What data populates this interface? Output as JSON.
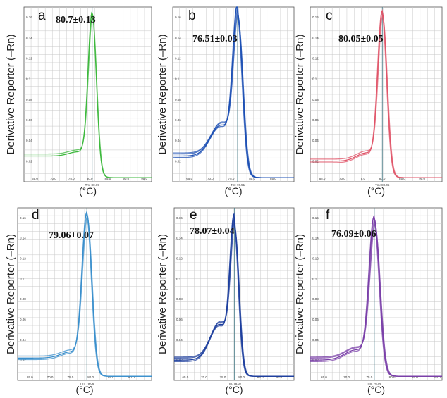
{
  "figure": {
    "y_axis_label": "Derivative Reporter (–Rn)",
    "x_axis_label": "(°C)"
  },
  "chart_data": [
    {
      "type": "line",
      "panel": "a",
      "annotation": "80.7±0.13",
      "color": "#3cb83c",
      "n_traces": 2,
      "tm": 80.7,
      "xlim": [
        62,
        97
      ],
      "ylim": [
        0,
        0.17
      ],
      "x_ticks": [
        "65.0",
        "70.0",
        "75.0",
        "80.0",
        "85.0",
        "90.0",
        "95.0"
      ],
      "y_ticks": [
        "0.02",
        "0.04",
        "0.06",
        "0.08",
        "0.1",
        "0.12",
        "0.14",
        "0.16"
      ],
      "tm_label": "Tm: 80.69",
      "baseline": 0.025,
      "peak_height": 0.165,
      "peak_width": 1.1,
      "shoulder": 0.004
    },
    {
      "type": "line",
      "panel": "b",
      "annotation": "76.51±0.03",
      "color": "#1e50b4",
      "n_traces": 4,
      "tm": 76.51,
      "xlim": [
        61,
        90
      ],
      "ylim": [
        0,
        0.17
      ],
      "x_ticks": [
        "65.0",
        "70.0",
        "75.0",
        "80.0",
        "85.0"
      ],
      "y_ticks": [
        "0.02",
        "0.04",
        "0.06",
        "0.08",
        "0.1",
        "0.12",
        "0.14",
        "0.16"
      ],
      "tm_label": "Tm: 76.51",
      "baseline": 0.025,
      "peak_height": 0.165,
      "peak_width": 1.1,
      "shoulder": 0.03
    },
    {
      "type": "line",
      "panel": "c",
      "annotation": "80.05±0.05",
      "color": "#e0566a",
      "n_traces": 3,
      "tm": 80.05,
      "xlim": [
        62,
        95
      ],
      "ylim": [
        0,
        0.17
      ],
      "x_ticks": [
        "65.0",
        "70.0",
        "75.0",
        "80.0",
        "85.0",
        "90.0"
      ],
      "y_ticks": [
        "0.02",
        "0.04",
        "0.06",
        "0.08",
        "0.1",
        "0.12",
        "0.14",
        "0.16"
      ],
      "tm_label": "Tm: 80.05",
      "baseline": 0.02,
      "peak_height": 0.165,
      "peak_width": 1.1,
      "shoulder": 0.008
    },
    {
      "type": "line",
      "panel": "d",
      "annotation": "79.06+0.07",
      "color": "#3a8fcc",
      "n_traces": 3,
      "tm": 79.06,
      "xlim": [
        62,
        95
      ],
      "ylim": [
        0,
        0.17
      ],
      "x_ticks": [
        "65.0",
        "70.0",
        "75.0",
        "80.0",
        "85.0",
        "90.0"
      ],
      "y_ticks": [
        "0.02",
        "0.04",
        "0.06",
        "0.08",
        "0.1",
        "0.12",
        "0.14",
        "0.16"
      ],
      "tm_label": "Tm: 79.06",
      "baseline": 0.022,
      "peak_height": 0.165,
      "peak_width": 1.15,
      "shoulder": 0.006
    },
    {
      "type": "line",
      "panel": "e",
      "annotation": "78.07±0.04",
      "color": "#1d3f9e",
      "n_traces": 4,
      "tm": 78.07,
      "xlim": [
        62,
        94
      ],
      "ylim": [
        0,
        0.17
      ],
      "x_ticks": [
        "65.0",
        "70.0",
        "75.0",
        "80.0",
        "85.0",
        "90.0"
      ],
      "y_ticks": [
        "0.02",
        "0.04",
        "0.06",
        "0.08",
        "0.1",
        "0.12",
        "0.14",
        "0.16"
      ],
      "tm_label": "Tm: 78.07",
      "baseline": 0.02,
      "peak_height": 0.155,
      "peak_width": 1.1,
      "shoulder": 0.035
    },
    {
      "type": "line",
      "panel": "f",
      "annotation": "76.09±0.06",
      "color": "#7a3fa8",
      "n_traces": 4,
      "tm": 76.09,
      "xlim": [
        62,
        91
      ],
      "ylim": [
        0,
        0.17
      ],
      "x_ticks": [
        "65.0",
        "70.0",
        "75.0",
        "80.0",
        "85.0",
        "90.0"
      ],
      "y_ticks": [
        "0.02",
        "0.04",
        "0.06",
        "0.08",
        "0.1",
        "0.12",
        "0.14",
        "0.16"
      ],
      "tm_label": "Tm: 76.09",
      "baseline": 0.02,
      "peak_height": 0.16,
      "peak_width": 1.1,
      "shoulder": 0.01
    }
  ]
}
